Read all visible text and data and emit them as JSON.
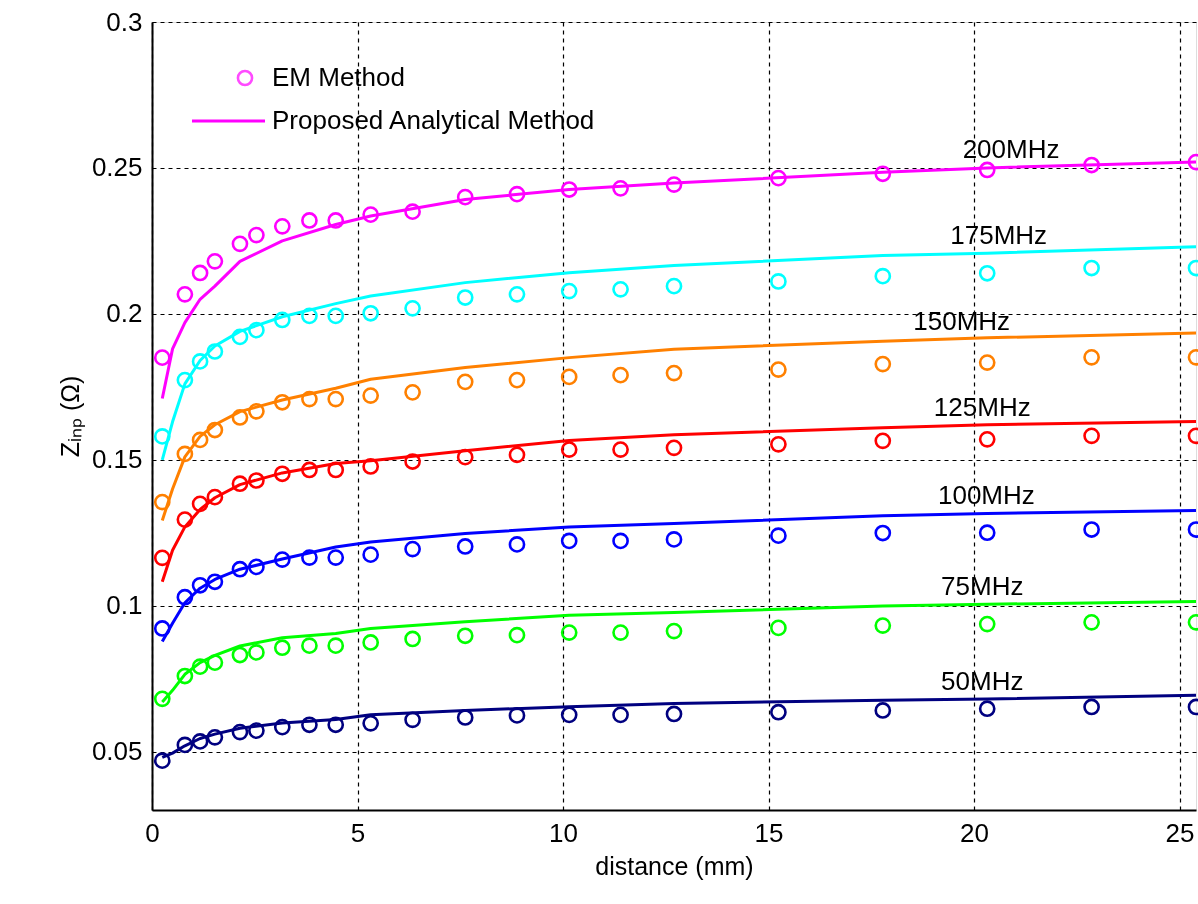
{
  "chart_data": {
    "type": "line",
    "xlabel": "distance (mm)",
    "ylabel": "Zᵢₙₚ (Ω)",
    "xlim": [
      0,
      25.4
    ],
    "ylim": [
      0.03,
      0.3
    ],
    "xticks": [
      0,
      5,
      10,
      15,
      20,
      25
    ],
    "yticks": [
      0.05,
      0.1,
      0.15,
      0.2,
      0.25,
      0.3
    ],
    "grid": true,
    "legend": "top left",
    "x": [
      0.25,
      0.8,
      1.17,
      1.53,
      2.14,
      2.54,
      3.17,
      3.83,
      4.47,
      5.32,
      6.34,
      7.62,
      8.88,
      10.15,
      11.4,
      12.7,
      15.24,
      17.78,
      20.32,
      22.86,
      25.4
    ],
    "annotations": [
      {
        "text": "200MHz",
        "x": 20.9,
        "y": 0.2504
      },
      {
        "text": "175MHz",
        "x": 20.6,
        "y": 0.221
      },
      {
        "text": "150MHz",
        "x": 19.7,
        "y": 0.1915
      },
      {
        "text": "125MHz",
        "x": 20.2,
        "y": 0.162
      },
      {
        "text": "100MHz",
        "x": 20.3,
        "y": 0.1316
      },
      {
        "text": "75MHz",
        "x": 20.2,
        "y": 0.1005
      },
      {
        "text": "50MHz",
        "x": 20.2,
        "y": 0.068
      }
    ],
    "series": [
      {
        "name": "EM Method",
        "type": "scatter",
        "marker": "circle",
        "color": "#ff00ff",
        "values": [
          0.185,
          0.2067,
          0.214,
          0.218,
          0.224,
          0.227,
          0.23,
          0.232,
          0.232,
          0.234,
          0.235,
          0.24,
          0.241,
          0.2426,
          0.243,
          0.2443,
          0.2465,
          0.248,
          0.2493,
          0.251,
          0.252
        ]
      },
      {
        "name": "Proposed Analytical Method",
        "color": "#ff00ff",
        "x": [
          0.25,
          0.5,
          0.8,
          1.17,
          1.53,
          2.14,
          3.17,
          4.47,
          5.32,
          7.62,
          10.15,
          12.7,
          17.78,
          20.32,
          25.4
        ],
        "values": [
          0.171,
          0.188,
          0.197,
          0.205,
          0.2095,
          0.218,
          0.225,
          0.2306,
          0.2335,
          0.2392,
          0.2426,
          0.2448,
          0.2485,
          0.25,
          0.252
        ]
      },
      {
        "type": "scatter",
        "marker": "circle",
        "color": "#00ffff",
        "values": [
          0.158,
          0.1773,
          0.1837,
          0.1871,
          0.1921,
          0.1944,
          0.1979,
          0.1993,
          0.1993,
          0.2002,
          0.2019,
          0.2056,
          0.2067,
          0.2078,
          0.2084,
          0.2095,
          0.2111,
          0.2129,
          0.2139,
          0.2157,
          0.2157
        ]
      },
      {
        "color": "#00ffff",
        "x": [
          0.25,
          0.5,
          0.8,
          1.17,
          1.53,
          2.14,
          3.17,
          4.47,
          5.32,
          7.62,
          10.15,
          12.7,
          17.78,
          20.32,
          25.4
        ],
        "values": [
          0.15,
          0.163,
          0.176,
          0.184,
          0.189,
          0.194,
          0.199,
          0.2035,
          0.2061,
          0.2107,
          0.2141,
          0.2166,
          0.22,
          0.2208,
          0.223
        ]
      },
      {
        "type": "scatter",
        "marker": "circle",
        "color": "#ff8000",
        "values": [
          0.1355,
          0.152,
          0.1568,
          0.1602,
          0.1645,
          0.1666,
          0.1697,
          0.1708,
          0.1708,
          0.172,
          0.1731,
          0.1767,
          0.1773,
          0.1784,
          0.179,
          0.1797,
          0.1809,
          0.1828,
          0.1833,
          0.1851,
          0.1851
        ]
      },
      {
        "color": "#ff8000",
        "x": [
          0.25,
          0.5,
          0.8,
          1.17,
          1.53,
          2.14,
          3.17,
          4.47,
          5.32,
          7.62,
          10.15,
          12.7,
          17.78,
          20.32,
          25.4
        ],
        "values": [
          0.1292,
          0.14,
          0.151,
          0.158,
          0.162,
          0.1665,
          0.1705,
          0.1745,
          0.1776,
          0.1816,
          0.185,
          0.1879,
          0.1906,
          0.1918,
          0.1934
        ]
      },
      {
        "type": "scatter",
        "marker": "circle",
        "color": "#ff0000",
        "values": [
          0.1164,
          0.1295,
          0.1349,
          0.1372,
          0.1418,
          0.1429,
          0.1452,
          0.1465,
          0.1465,
          0.1477,
          0.1494,
          0.1509,
          0.1517,
          0.1535,
          0.1535,
          0.1541,
          0.1553,
          0.1565,
          0.157,
          0.1582,
          0.1582
        ]
      },
      {
        "color": "#ff0000",
        "x": [
          0.25,
          0.5,
          0.8,
          1.17,
          1.53,
          2.14,
          3.17,
          4.47,
          5.32,
          7.62,
          10.15,
          12.7,
          17.78,
          20.32,
          25.4
        ],
        "values": [
          0.1082,
          0.119,
          0.127,
          0.133,
          0.137,
          0.1415,
          0.1455,
          0.1487,
          0.1497,
          0.1531,
          0.1566,
          0.1586,
          0.161,
          0.162,
          0.1631
        ]
      },
      {
        "type": "scatter",
        "marker": "circle",
        "color": "#0000ff",
        "values": [
          0.0922,
          0.1029,
          0.107,
          0.1082,
          0.1125,
          0.1133,
          0.1158,
          0.1165,
          0.1165,
          0.1175,
          0.1194,
          0.1203,
          0.121,
          0.1222,
          0.1222,
          0.1227,
          0.124,
          0.1249,
          0.125,
          0.1261,
          0.1261
        ]
      },
      {
        "color": "#0000ff",
        "x": [
          0.25,
          0.5,
          0.8,
          1.17,
          1.53,
          2.14,
          3.17,
          4.47,
          5.32,
          7.62,
          10.15,
          12.7,
          17.78,
          20.32,
          25.4
        ],
        "values": [
          0.0877,
          0.094,
          0.101,
          0.106,
          0.109,
          0.1125,
          0.116,
          0.1201,
          0.1218,
          0.1247,
          0.127,
          0.1282,
          0.1308,
          0.1316,
          0.1326
        ]
      },
      {
        "type": "scatter",
        "marker": "circle",
        "color": "#00ff00",
        "values": [
          0.0681,
          0.0759,
          0.0791,
          0.0805,
          0.0831,
          0.084,
          0.0856,
          0.0863,
          0.0863,
          0.0874,
          0.0886,
          0.0897,
          0.0899,
          0.0908,
          0.0908,
          0.0913,
          0.0924,
          0.0932,
          0.0937,
          0.0943,
          0.0943
        ]
      },
      {
        "color": "#00ff00",
        "x": [
          0.25,
          0.5,
          0.8,
          1.17,
          1.53,
          2.14,
          3.17,
          4.47,
          5.32,
          7.62,
          10.15,
          12.7,
          17.78,
          20.32,
          25.4
        ],
        "values": [
          0.067,
          0.071,
          0.0765,
          0.0805,
          0.083,
          0.0862,
          0.089,
          0.0905,
          0.0922,
          0.0945,
          0.0967,
          0.0977,
          0.0999,
          0.1005,
          0.1014
        ]
      },
      {
        "type": "scatter",
        "marker": "circle",
        "color": "#000080",
        "values": [
          0.0469,
          0.0523,
          0.0535,
          0.0549,
          0.0567,
          0.0572,
          0.0584,
          0.0592,
          0.0592,
          0.0597,
          0.0609,
          0.0617,
          0.0624,
          0.0626,
          0.0626,
          0.0629,
          0.0635,
          0.0641,
          0.0647,
          0.0653,
          0.0653
        ]
      },
      {
        "color": "#000080",
        "x": [
          0.25,
          0.5,
          0.8,
          1.17,
          1.53,
          2.14,
          3.17,
          4.47,
          5.32,
          7.62,
          10.15,
          12.7,
          17.78,
          20.32,
          25.4
        ],
        "values": [
          0.048,
          0.0495,
          0.052,
          0.0545,
          0.056,
          0.058,
          0.0598,
          0.061,
          0.0626,
          0.0641,
          0.0654,
          0.0665,
          0.0676,
          0.068,
          0.0693
        ]
      }
    ]
  }
}
